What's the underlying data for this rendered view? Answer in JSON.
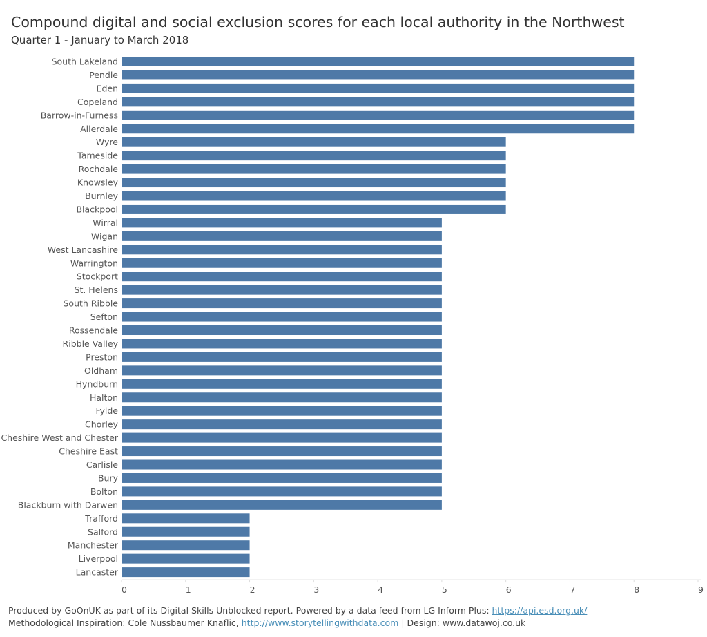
{
  "title": "Compound digital and social exclusion scores for each local authority in the Northwest",
  "subtitle": "Quarter 1 - January to March 2018",
  "footer": {
    "line1_text": "Produced by GoOnUK as part of its Digital Skills Unblocked report. Powered by a data feed from LG Inform Plus: ",
    "line1_link": "https://api.esd.org.uk/",
    "line2_text": "Methodological Inspiration: Cole Nussbaumer Knaflic,  ",
    "line2_link": "http://www.storytellingwithdata.com",
    "line2_suffix": " | Design: www.datawoj.co.uk"
  },
  "colors": {
    "bar": "#4e79a7",
    "axis": "#dddddd",
    "text": "#555555",
    "link": "#4a8fb8"
  },
  "chart_data": {
    "type": "bar",
    "orientation": "horizontal",
    "title": "Compound digital and social exclusion scores for each local authority in the Northwest",
    "subtitle": "Quarter 1 - January to March 2018",
    "xlabel": "",
    "ylabel": "",
    "xlim": [
      0,
      9
    ],
    "x_ticks": [
      "0",
      "1",
      "2",
      "3",
      "4",
      "5",
      "6",
      "7",
      "8",
      "9"
    ],
    "grid": false,
    "categories": [
      "South Lakeland",
      "Pendle",
      "Eden",
      "Copeland",
      "Barrow-in-Furness",
      "Allerdale",
      "Wyre",
      "Tameside",
      "Rochdale",
      "Knowsley",
      "Burnley",
      "Blackpool",
      "Wirral",
      "Wigan",
      "West Lancashire",
      "Warrington",
      "Stockport",
      "St. Helens",
      "South Ribble",
      "Sefton",
      "Rossendale",
      "Ribble Valley",
      "Preston",
      "Oldham",
      "Hyndburn",
      "Halton",
      "Fylde",
      "Chorley",
      "Cheshire West and Chester",
      "Cheshire East",
      "Carlisle",
      "Bury",
      "Bolton",
      "Blackburn with Darwen",
      "Trafford",
      "Salford",
      "Manchester",
      "Liverpool",
      "Lancaster"
    ],
    "values": [
      8,
      8,
      8,
      8,
      8,
      8,
      6,
      6,
      6,
      6,
      6,
      6,
      5,
      5,
      5,
      5,
      5,
      5,
      5,
      5,
      5,
      5,
      5,
      5,
      5,
      5,
      5,
      5,
      5,
      5,
      5,
      5,
      5,
      5,
      2,
      2,
      2,
      2,
      2
    ]
  }
}
